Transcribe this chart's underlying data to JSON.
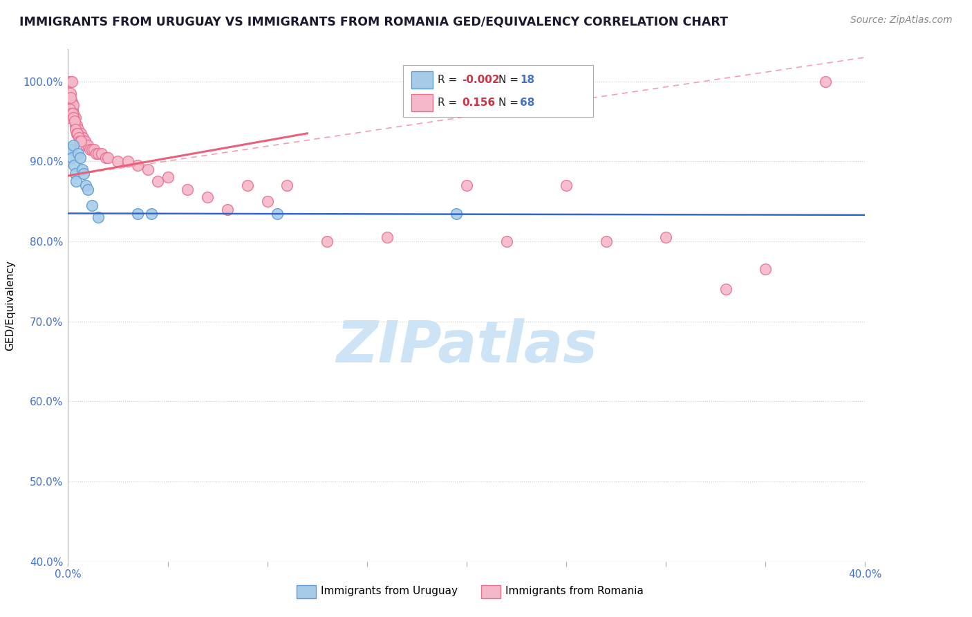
{
  "title": "IMMIGRANTS FROM URUGUAY VS IMMIGRANTS FROM ROMANIA GED/EQUIVALENCY CORRELATION CHART",
  "source": "Source: ZipAtlas.com",
  "ylabel": "GED/Equivalency",
  "xmin": 0.0,
  "xmax": 40.0,
  "ymin": 40.0,
  "ymax": 104.0,
  "yticks": [
    40.0,
    50.0,
    60.0,
    70.0,
    80.0,
    90.0,
    100.0
  ],
  "xticks": [
    0.0,
    5.0,
    10.0,
    15.0,
    20.0,
    25.0,
    30.0,
    35.0,
    40.0
  ],
  "legend_uruguay_label": "Immigrants from Uruguay",
  "legend_romania_label": "Immigrants from Romania",
  "legend_uruguay_R": "-0.002",
  "legend_uruguay_N": "18",
  "legend_romania_R": "0.156",
  "legend_romania_N": "68",
  "uruguay_color": "#a8cce8",
  "romania_color": "#f5b8c8",
  "uruguay_edge_color": "#5b9bd5",
  "romania_edge_color": "#e87090",
  "trend_uruguay_color": "#3366cc",
  "trend_romania_solid_color": "#e8607a",
  "trend_romania_dash_color": "#f0a0b0",
  "background_color": "#ffffff",
  "grid_color": "#cccccc",
  "watermark_text": "ZIPatlas",
  "watermark_color": "#cce4f5",
  "title_color": "#1a1a2e",
  "source_color": "#888888",
  "ytick_color": "#4472c4",
  "xtick_label_color": "#4472c4",
  "uruguay_x": [
    0.15,
    0.2,
    0.25,
    0.3,
    0.35,
    0.4,
    0.5,
    0.6,
    0.7,
    0.8,
    0.9,
    1.0,
    1.2,
    1.5,
    3.5,
    4.2,
    10.5,
    19.5
  ],
  "uruguay_y": [
    91.5,
    90.5,
    92.0,
    89.5,
    88.5,
    87.5,
    91.0,
    90.5,
    89.0,
    88.5,
    87.0,
    86.5,
    84.5,
    83.0,
    83.5,
    83.5,
    83.5,
    83.5
  ],
  "romania_x": [
    0.05,
    0.1,
    0.12,
    0.15,
    0.18,
    0.2,
    0.22,
    0.25,
    0.28,
    0.3,
    0.32,
    0.35,
    0.38,
    0.4,
    0.42,
    0.45,
    0.5,
    0.55,
    0.6,
    0.65,
    0.7,
    0.75,
    0.8,
    0.85,
    0.9,
    1.0,
    1.1,
    1.2,
    1.3,
    1.4,
    1.5,
    1.7,
    1.9,
    2.0,
    2.5,
    3.0,
    3.5,
    4.0,
    4.5,
    5.0,
    6.0,
    7.0,
    8.0,
    9.0,
    10.0,
    11.0,
    13.0,
    16.0,
    20.0,
    22.0,
    25.0,
    27.0,
    30.0,
    33.0,
    35.0,
    38.0,
    0.08,
    0.13,
    0.17,
    0.23,
    0.27,
    0.33,
    0.37,
    0.43,
    0.47,
    0.53,
    0.57,
    0.63
  ],
  "romania_y": [
    95.5,
    100.0,
    98.5,
    97.0,
    97.5,
    100.0,
    96.5,
    97.0,
    96.0,
    95.5,
    95.0,
    95.5,
    94.5,
    94.0,
    94.5,
    93.5,
    94.0,
    93.5,
    93.0,
    93.5,
    93.0,
    93.0,
    92.5,
    92.5,
    92.0,
    92.0,
    91.5,
    91.5,
    91.5,
    91.0,
    91.0,
    91.0,
    90.5,
    90.5,
    90.0,
    90.0,
    89.5,
    89.0,
    87.5,
    88.0,
    86.5,
    85.5,
    84.0,
    87.0,
    85.0,
    87.0,
    80.0,
    80.5,
    87.0,
    80.0,
    87.0,
    80.0,
    80.5,
    74.0,
    76.5,
    100.0,
    96.5,
    98.0,
    96.0,
    96.0,
    95.5,
    95.0,
    94.0,
    93.5,
    93.5,
    93.0,
    92.5,
    92.5
  ],
  "trend_uru_x0": 0.0,
  "trend_uru_x1": 40.0,
  "trend_uru_y0": 83.5,
  "trend_uru_y1": 83.3,
  "trend_rom_solid_x0": 0.0,
  "trend_rom_solid_x1": 12.0,
  "trend_rom_solid_y0": 88.2,
  "trend_rom_solid_y1": 93.5,
  "trend_rom_dash_x0": 0.0,
  "trend_rom_dash_x1": 40.0,
  "trend_rom_dash_y0": 88.2,
  "trend_rom_dash_y1": 103.0
}
